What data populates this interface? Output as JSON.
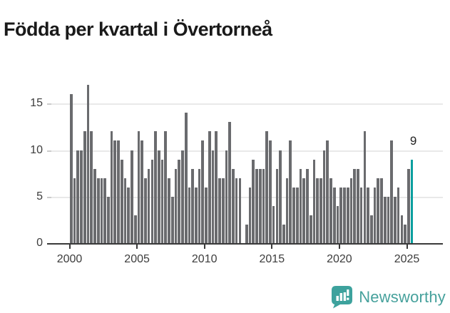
{
  "title": "Födda per kvartal i Övertorneå",
  "colors": {
    "bar": "#6a6b6e",
    "highlight": "#0a9f9f",
    "grid": "#e9e9e9",
    "axis": "#3a3a3a",
    "tick_text": "#3c3c3c",
    "title_text": "#1a1a1a",
    "annotation_text": "#222222",
    "logo_teal": "#46a19c"
  },
  "chart_data": {
    "type": "bar",
    "title": "Födda per kvartal i Övertorneå",
    "xlabel": "",
    "ylabel": "",
    "start_period": "2000-Q1",
    "end_period": "2025-Q2",
    "periods_per_year": 4,
    "values": [
      16,
      7,
      10,
      10,
      12,
      17,
      12,
      8,
      7,
      7,
      7,
      5,
      12,
      11,
      11,
      9,
      7,
      6,
      10,
      3,
      12,
      11,
      7,
      8,
      9,
      12,
      10,
      9,
      12,
      7,
      5,
      8,
      9,
      10,
      14,
      6,
      8,
      6,
      8,
      11,
      6,
      12,
      10,
      12,
      7,
      7,
      10,
      13,
      8,
      7,
      7,
      0,
      2,
      6,
      9,
      8,
      8,
      8,
      12,
      11,
      4,
      8,
      10,
      2,
      7,
      11,
      6,
      6,
      8,
      7,
      8,
      3,
      9,
      7,
      7,
      10,
      11,
      7,
      6,
      4,
      6,
      6,
      6,
      7,
      8,
      8,
      6,
      12,
      6,
      3,
      6,
      7,
      7,
      5,
      5,
      11,
      5,
      6,
      3,
      2,
      8,
      9
    ],
    "highlight_last_value": 9,
    "annotation": {
      "text": "9"
    },
    "x_tick_labels": [
      "2000",
      "2005",
      "2010",
      "2015",
      "2020",
      "2025"
    ],
    "y_tick_labels": [
      "0",
      "5",
      "10",
      "15"
    ],
    "ylim": [
      0,
      17.5
    ],
    "grid": "horizontal",
    "legend": "none"
  },
  "logo": {
    "text": "Newsworthy",
    "icon": "newsworthy-pin-barchart"
  }
}
